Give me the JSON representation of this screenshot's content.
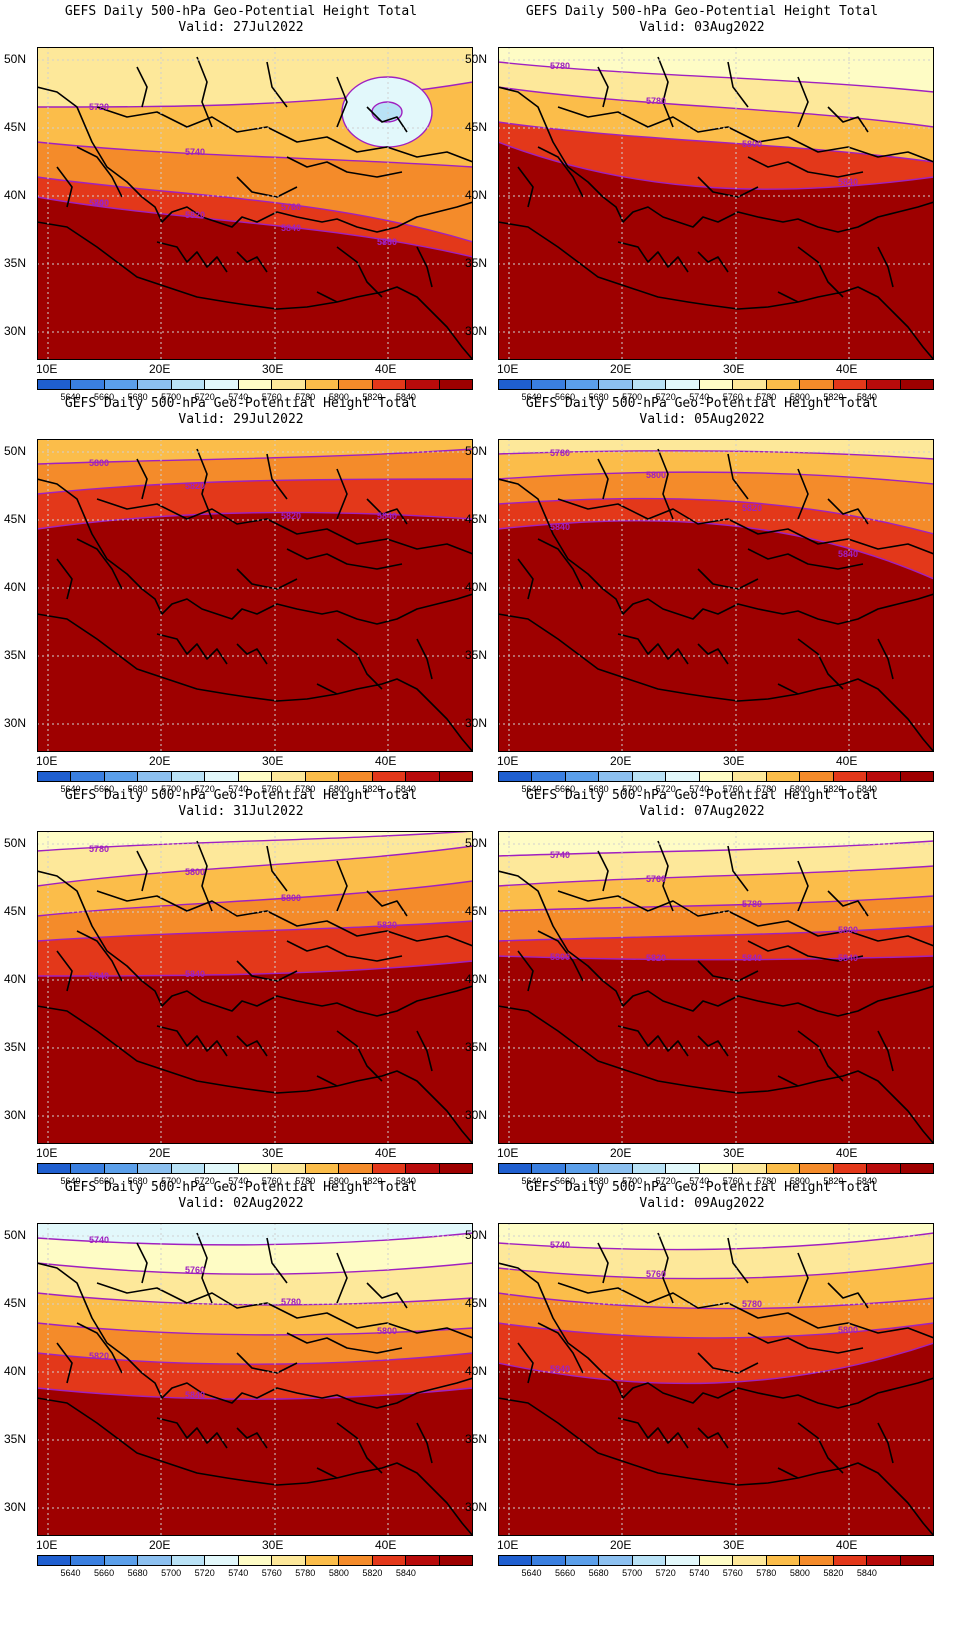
{
  "colorbar": {
    "levels": [
      "5640",
      "5660",
      "5680",
      "5700",
      "5720",
      "5740",
      "5760",
      "5780",
      "5800",
      "5820",
      "5840"
    ],
    "colors": [
      "#1f5fd0",
      "#3a7fe0",
      "#5b9fea",
      "#8cc0f0",
      "#b9e2f6",
      "#e2f8fb",
      "#fefcc5",
      "#fde89a",
      "#fbbd4a",
      "#f48b2a",
      "#e3381a",
      "#b80b0b",
      "#9e0000"
    ]
  },
  "axes": {
    "lat_labels": [
      "50N",
      "45N",
      "40N",
      "35N",
      "30N"
    ],
    "lon_labels": [
      "10E",
      "20E",
      "30E",
      "40E"
    ]
  },
  "panels": [
    {
      "title": "GEFS Daily 500-hPa Geo-Potential Height Total",
      "valid": "Valid: 27Jul2022",
      "contour_labels": [
        "5720",
        "5740",
        "5760",
        "5780",
        "5800",
        "5820",
        "5840",
        "5800",
        "5740"
      ]
    },
    {
      "title": "GEFS Daily 500-hPa Geo-Potential Height Total",
      "valid": "Valid: 03Aug2022",
      "contour_labels": [
        "5780",
        "5780",
        "5800",
        "5840"
      ]
    },
    {
      "title": "GEFS Daily 500-hPa Geo-Potential Height Total",
      "valid": "Valid: 29Jul2022",
      "contour_labels": [
        "5800",
        "5820",
        "5820",
        "5840"
      ]
    },
    {
      "title": "GEFS Daily 500-hPa Geo-Potential Height Total",
      "valid": "Valid: 05Aug2022",
      "contour_labels": [
        "5780",
        "5800",
        "5820",
        "5840",
        "5840"
      ]
    },
    {
      "title": "GEFS Daily 500-hPa Geo-Potential Height Total",
      "valid": "Valid: 31Jul2022",
      "contour_labels": [
        "5780",
        "5800",
        "5800",
        "5820",
        "5840",
        "5840"
      ]
    },
    {
      "title": "GEFS Daily 500-hPa Geo-Potential Height Total",
      "valid": "Valid: 07Aug2022",
      "contour_labels": [
        "5740",
        "5760",
        "5780",
        "5800",
        "5800",
        "5820",
        "5840",
        "5840"
      ]
    },
    {
      "title": "GEFS Daily 500-hPa Geo-Potential Height Total",
      "valid": "Valid: 02Aug2022",
      "contour_labels": [
        "5740",
        "5760",
        "5780",
        "5800",
        "5820",
        "5840"
      ]
    },
    {
      "title": "GEFS Daily 500-hPa Geo-Potential Height Total",
      "valid": "Valid: 09Aug2022",
      "contour_labels": [
        "5740",
        "5760",
        "5780",
        "5800",
        "5840"
      ]
    }
  ]
}
